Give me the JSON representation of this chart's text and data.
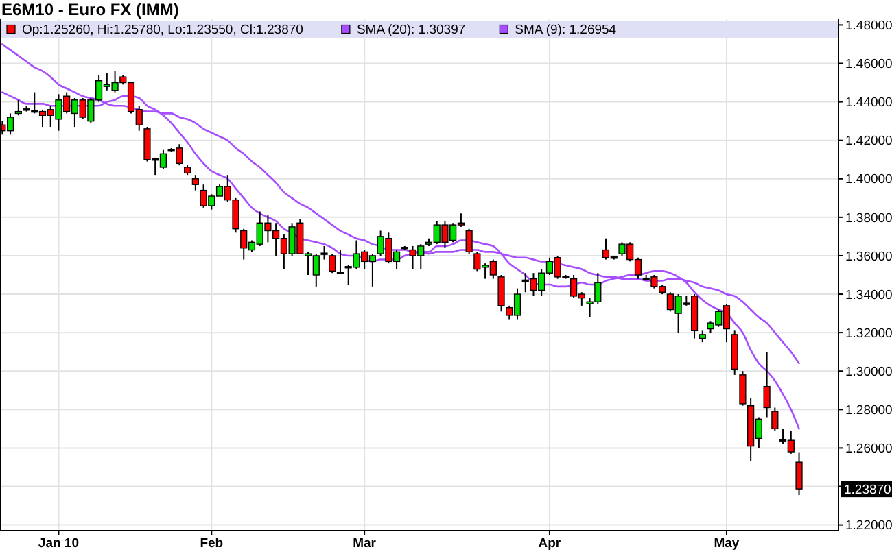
{
  "chart_data": {
    "type": "candlestick",
    "title": "E6M10 - Euro FX (IMM)",
    "categories": [
      null,
      null,
      null,
      null,
      null,
      null,
      null,
      "Jan 10",
      null,
      null,
      null,
      null,
      null,
      null,
      null,
      null,
      null,
      null,
      null,
      null,
      null,
      null,
      null,
      null,
      null,
      null,
      "Feb",
      null,
      null,
      null,
      null,
      null,
      null,
      null,
      null,
      null,
      null,
      null,
      null,
      null,
      null,
      null,
      null,
      null,
      null,
      "Mar",
      null,
      null,
      null,
      null,
      null,
      null,
      null,
      null,
      null,
      null,
      null,
      null,
      null,
      null,
      null,
      null,
      null,
      null,
      null,
      null,
      null,
      null,
      "Apr",
      null,
      null,
      null,
      null,
      null,
      null,
      null,
      null,
      null,
      null,
      null,
      null,
      null,
      null,
      null,
      null,
      null,
      null,
      null,
      null,
      null,
      "May",
      null,
      null,
      null,
      null,
      null,
      null,
      null,
      null,
      null
    ],
    "ohlc": [
      [
        1.428,
        1.43,
        1.423,
        1.425
      ],
      [
        1.425,
        1.434,
        1.423,
        1.432
      ],
      [
        1.434,
        1.441,
        1.433,
        1.435
      ],
      [
        1.436,
        1.438,
        1.435,
        1.436
      ],
      [
        1.435,
        1.445,
        1.434,
        1.435
      ],
      [
        1.435,
        1.436,
        1.427,
        1.433
      ],
      [
        1.436,
        1.438,
        1.427,
        1.433
      ],
      [
        1.431,
        1.444,
        1.425,
        1.441
      ],
      [
        1.443,
        1.445,
        1.434,
        1.435
      ],
      [
        1.434,
        1.442,
        1.427,
        1.441
      ],
      [
        1.441,
        1.442,
        1.431,
        1.432
      ],
      [
        1.43,
        1.442,
        1.429,
        1.441
      ],
      [
        1.441,
        1.454,
        1.44,
        1.451
      ],
      [
        1.448,
        1.455,
        1.446,
        1.449
      ],
      [
        1.446,
        1.456,
        1.445,
        1.45
      ],
      [
        1.453,
        1.454,
        1.449,
        1.45
      ],
      [
        1.45,
        1.45,
        1.434,
        1.435
      ],
      [
        1.436,
        1.438,
        1.425,
        1.428
      ],
      [
        1.426,
        1.427,
        1.409,
        1.41
      ],
      [
        1.41,
        1.411,
        1.402,
        1.41
      ],
      [
        1.406,
        1.415,
        1.405,
        1.413
      ],
      [
        1.415,
        1.416,
        1.414,
        1.415
      ],
      [
        1.416,
        1.418,
        1.407,
        1.408
      ],
      [
        1.406,
        1.407,
        1.402,
        1.403
      ],
      [
        1.4,
        1.402,
        1.394,
        1.397
      ],
      [
        1.394,
        1.397,
        1.385,
        1.386
      ],
      [
        1.386,
        1.392,
        1.384,
        1.391
      ],
      [
        1.391,
        1.397,
        1.391,
        1.396
      ],
      [
        1.396,
        1.402,
        1.388,
        1.389
      ],
      [
        1.389,
        1.39,
        1.372,
        1.374
      ],
      [
        1.373,
        1.374,
        1.358,
        1.364
      ],
      [
        1.363,
        1.368,
        1.362,
        1.367
      ],
      [
        1.366,
        1.383,
        1.365,
        1.377
      ],
      [
        1.377,
        1.381,
        1.367,
        1.373
      ],
      [
        1.373,
        1.377,
        1.36,
        1.369
      ],
      [
        1.369,
        1.371,
        1.353,
        1.361
      ],
      [
        1.361,
        1.377,
        1.36,
        1.375
      ],
      [
        1.377,
        1.379,
        1.361,
        1.361
      ],
      [
        1.36,
        1.362,
        1.35,
        1.361
      ],
      [
        1.35,
        1.361,
        1.344,
        1.36
      ],
      [
        1.361,
        1.365,
        1.358,
        1.361
      ],
      [
        1.36,
        1.361,
        1.351,
        1.352
      ],
      [
        1.351,
        1.363,
        1.351,
        1.351
      ],
      [
        1.354,
        1.355,
        1.345,
        1.354
      ],
      [
        1.354,
        1.368,
        1.353,
        1.361
      ],
      [
        1.362,
        1.363,
        1.353,
        1.357
      ],
      [
        1.357,
        1.361,
        1.344,
        1.36
      ],
      [
        1.361,
        1.373,
        1.36,
        1.37
      ],
      [
        1.369,
        1.372,
        1.356,
        1.357
      ],
      [
        1.357,
        1.363,
        1.353,
        1.362
      ],
      [
        1.364,
        1.365,
        1.363,
        1.364
      ],
      [
        1.363,
        1.365,
        1.353,
        1.36
      ],
      [
        1.36,
        1.366,
        1.353,
        1.365
      ],
      [
        1.366,
        1.369,
        1.365,
        1.367
      ],
      [
        1.367,
        1.378,
        1.366,
        1.376
      ],
      [
        1.376,
        1.378,
        1.364,
        1.367
      ],
      [
        1.368,
        1.377,
        1.367,
        1.376
      ],
      [
        1.377,
        1.382,
        1.375,
        1.376
      ],
      [
        1.373,
        1.374,
        1.361,
        1.362
      ],
      [
        1.361,
        1.362,
        1.352,
        1.353
      ],
      [
        1.354,
        1.356,
        1.348,
        1.355
      ],
      [
        1.357,
        1.358,
        1.348,
        1.35
      ],
      [
        1.349,
        1.35,
        1.331,
        1.334
      ],
      [
        1.333,
        1.334,
        1.327,
        1.329
      ],
      [
        1.329,
        1.343,
        1.327,
        1.34
      ],
      [
        1.347,
        1.351,
        1.341,
        1.347
      ],
      [
        1.348,
        1.351,
        1.339,
        1.342
      ],
      [
        1.342,
        1.353,
        1.339,
        1.351
      ],
      [
        1.351,
        1.359,
        1.35,
        1.357
      ],
      [
        1.359,
        1.36,
        1.348,
        1.349
      ],
      [
        1.349,
        1.35,
        1.348,
        1.349
      ],
      [
        1.348,
        1.35,
        1.338,
        1.339
      ],
      [
        1.34,
        1.341,
        1.334,
        1.338
      ],
      [
        1.335,
        1.338,
        1.328,
        1.336
      ],
      [
        1.336,
        1.351,
        1.335,
        1.346
      ],
      [
        1.363,
        1.369,
        1.358,
        1.359
      ],
      [
        1.359,
        1.36,
        1.358,
        1.359
      ],
      [
        1.361,
        1.367,
        1.36,
        1.366
      ],
      [
        1.366,
        1.367,
        1.357,
        1.358
      ],
      [
        1.358,
        1.359,
        1.348,
        1.35
      ],
      [
        1.348,
        1.35,
        1.347,
        1.348
      ],
      [
        1.349,
        1.35,
        1.343,
        1.344
      ],
      [
        1.344,
        1.345,
        1.34,
        1.341
      ],
      [
        1.34,
        1.341,
        1.331,
        1.332
      ],
      [
        1.33,
        1.34,
        1.32,
        1.339
      ],
      [
        1.335,
        1.339,
        1.334,
        1.335
      ],
      [
        1.339,
        1.34,
        1.317,
        1.321
      ],
      [
        1.317,
        1.321,
        1.315,
        1.319
      ],
      [
        1.322,
        1.326,
        1.32,
        1.325
      ],
      [
        1.324,
        1.332,
        1.323,
        1.331
      ],
      [
        1.334,
        1.335,
        1.315,
        1.322
      ],
      [
        1.319,
        1.321,
        1.298,
        1.301
      ],
      [
        1.298,
        1.3,
        1.282,
        1.283
      ],
      [
        1.282,
        1.286,
        1.253,
        1.261
      ],
      [
        1.265,
        1.276,
        1.26,
        1.275
      ],
      [
        1.292,
        1.31,
        1.276,
        1.281
      ],
      [
        1.279,
        1.281,
        1.269,
        1.27
      ],
      [
        1.264,
        1.27,
        1.262,
        1.264
      ],
      [
        1.264,
        1.269,
        1.257,
        1.258
      ],
      [
        1.2526,
        1.2578,
        1.2355,
        1.2387
      ]
    ],
    "colors": [
      "#ff0000",
      "#00e000",
      "#00e000",
      "#000000",
      "#000000",
      "#ff0000",
      "#ff0000",
      "#00e000",
      "#ff0000",
      "#00e000",
      "#ff0000",
      "#00e000",
      "#00e000",
      "#00e000",
      "#00e000",
      "#ff0000",
      "#ff0000",
      "#ff0000",
      "#ff0000",
      "#000000",
      "#00e000",
      "#000000",
      "#ff0000",
      "#ff0000",
      "#ff0000",
      "#ff0000",
      "#00e000",
      "#00e000",
      "#ff0000",
      "#ff0000",
      "#ff0000",
      "#00e000",
      "#00e000",
      "#ff0000",
      "#ff0000",
      "#ff0000",
      "#00e000",
      "#ff0000",
      "#00e000",
      "#00e000",
      "#000000",
      "#ff0000",
      "#000000",
      "#000000",
      "#00e000",
      "#ff0000",
      "#00e000",
      "#00e000",
      "#ff0000",
      "#00e000",
      "#000000",
      "#ff0000",
      "#00e000",
      "#00e000",
      "#00e000",
      "#ff0000",
      "#00e000",
      "#ff0000",
      "#ff0000",
      "#ff0000",
      "#00e000",
      "#ff0000",
      "#ff0000",
      "#ff0000",
      "#00e000",
      "#000000",
      "#ff0000",
      "#00e000",
      "#00e000",
      "#ff0000",
      "#000000",
      "#ff0000",
      "#ff0000",
      "#00e000",
      "#00e000",
      "#ff0000",
      "#000000",
      "#00e000",
      "#ff0000",
      "#ff0000",
      "#000000",
      "#ff0000",
      "#ff0000",
      "#ff0000",
      "#00e000",
      "#000000",
      "#ff0000",
      "#00e000",
      "#00e000",
      "#00e000",
      "#ff0000",
      "#ff0000",
      "#ff0000",
      "#ff0000",
      "#00e000",
      "#ff0000",
      "#ff0000",
      "#000000",
      "#ff0000",
      "#ff0000"
    ],
    "series": [
      {
        "type": "line",
        "name": "SMA (20): 1.30397",
        "color": "#a64dff",
        "values": [
          1.47,
          1.467,
          1.464,
          1.461,
          1.458,
          1.456,
          1.453,
          1.449,
          1.447,
          1.445,
          1.443,
          1.442,
          1.441,
          1.439,
          1.438,
          1.438,
          1.437,
          1.436,
          1.435,
          1.435,
          1.434,
          1.434,
          1.432,
          1.431,
          1.429,
          1.426,
          1.424,
          1.422,
          1.42,
          1.416,
          1.413,
          1.409,
          1.406,
          1.402,
          1.398,
          1.393,
          1.39,
          1.387,
          1.385,
          1.382,
          1.379,
          1.376,
          1.373,
          1.371,
          1.369,
          1.368,
          1.366,
          1.365,
          1.363,
          1.363,
          1.363,
          1.362,
          1.362,
          1.361,
          1.362,
          1.362,
          1.362,
          1.363,
          1.363,
          1.363,
          1.362,
          1.362,
          1.361,
          1.36,
          1.359,
          1.359,
          1.358,
          1.357,
          1.357,
          1.356,
          1.355,
          1.354,
          1.353,
          1.351,
          1.35,
          1.349,
          1.349,
          1.348,
          1.348,
          1.348,
          1.347,
          1.347,
          1.347,
          1.348,
          1.348,
          1.347,
          1.346,
          1.344,
          1.343,
          1.342,
          1.34,
          1.339,
          1.336,
          1.332,
          1.328,
          1.325,
          1.32,
          1.315,
          1.31,
          1.304
        ]
      },
      {
        "type": "line",
        "name": "SMA (9): 1.26954",
        "color": "#a64dff",
        "values": [
          1.445,
          1.443,
          1.441,
          1.439,
          1.439,
          1.439,
          1.438,
          1.438,
          1.438,
          1.438,
          1.438,
          1.438,
          1.438,
          1.44,
          1.441,
          1.443,
          1.443,
          1.442,
          1.438,
          1.436,
          1.433,
          1.429,
          1.424,
          1.419,
          1.413,
          1.408,
          1.404,
          1.402,
          1.4,
          1.395,
          1.39,
          1.385,
          1.382,
          1.38,
          1.378,
          1.374,
          1.372,
          1.369,
          1.368,
          1.367,
          1.366,
          1.364,
          1.361,
          1.36,
          1.36,
          1.358,
          1.357,
          1.358,
          1.358,
          1.358,
          1.36,
          1.361,
          1.362,
          1.362,
          1.365,
          1.365,
          1.366,
          1.368,
          1.368,
          1.367,
          1.366,
          1.365,
          1.361,
          1.356,
          1.353,
          1.35,
          1.346,
          1.345,
          1.345,
          1.344,
          1.344,
          1.345,
          1.346,
          1.345,
          1.345,
          1.347,
          1.348,
          1.349,
          1.35,
          1.35,
          1.351,
          1.352,
          1.352,
          1.351,
          1.349,
          1.346,
          1.341,
          1.337,
          1.334,
          1.332,
          1.33,
          1.325,
          1.32,
          1.311,
          1.304,
          1.3,
          1.295,
          1.288,
          1.28,
          1.27
        ]
      }
    ],
    "ylim": [
      1.217,
      1.483
    ],
    "yticks": [
      {
        "value": 1.22,
        "label": "1.22000"
      },
      {
        "value": 1.24,
        "label": null
      },
      {
        "value": 1.26,
        "label": "1.26000"
      },
      {
        "value": 1.28,
        "label": "1.28000"
      },
      {
        "value": 1.3,
        "label": "1.30000"
      },
      {
        "value": 1.32,
        "label": "1.32000"
      },
      {
        "value": 1.34,
        "label": "1.34000"
      },
      {
        "value": 1.36,
        "label": "1.36000"
      },
      {
        "value": 1.38,
        "label": "1.38000"
      },
      {
        "value": 1.4,
        "label": "1.40000"
      },
      {
        "value": 1.42,
        "label": "1.42000"
      },
      {
        "value": 1.44,
        "label": "1.44000"
      },
      {
        "value": 1.46,
        "label": "1.46000"
      },
      {
        "value": 1.48,
        "label": "1.48000"
      }
    ],
    "grid": true,
    "legend": "top",
    "annotations": [
      "Op:1.25260, Hi:1.25780, Lo:1.23550, Cl:1.23870",
      "1.23870"
    ]
  }
}
